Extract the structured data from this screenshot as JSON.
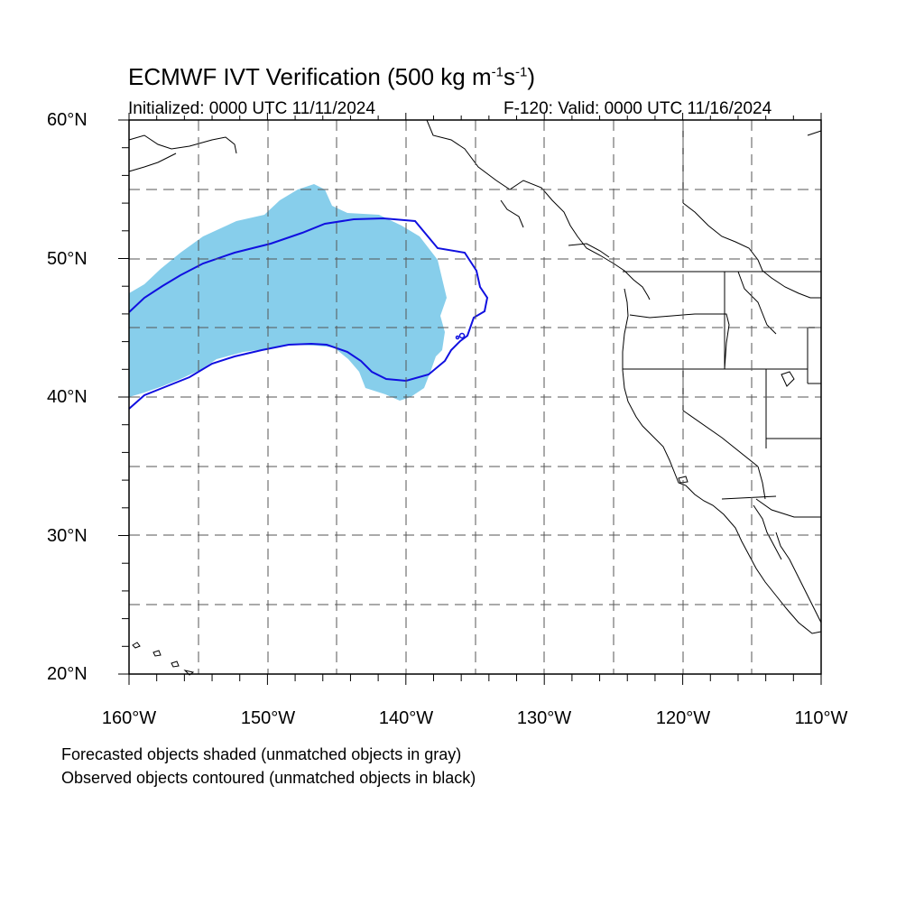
{
  "title": {
    "main": "ECMWF IVT Verification (500 kg m",
    "exp1": "-1",
    "mid": "s",
    "exp2": "-1",
    "end": ")"
  },
  "subtitle_left": "Initialized: 0000 UTC 11/11/2024",
  "subtitle_right": "F-120: Valid: 0000 UTC 11/16/2024",
  "lat_labels": [
    "60°N",
    "50°N",
    "40°N",
    "30°N",
    "20°N"
  ],
  "lon_labels": [
    "160°W",
    "150°W",
    "140°W",
    "130°W",
    "120°W",
    "110°W"
  ],
  "notes": [
    "Forecasted objects shaded (unmatched objects in gray)",
    "Observed objects contoured (unmatched objects in black)"
  ],
  "colors": {
    "forecast_fill": "#87ceeb",
    "observed_contour": "#1010e0",
    "grid": "#555555"
  }
}
